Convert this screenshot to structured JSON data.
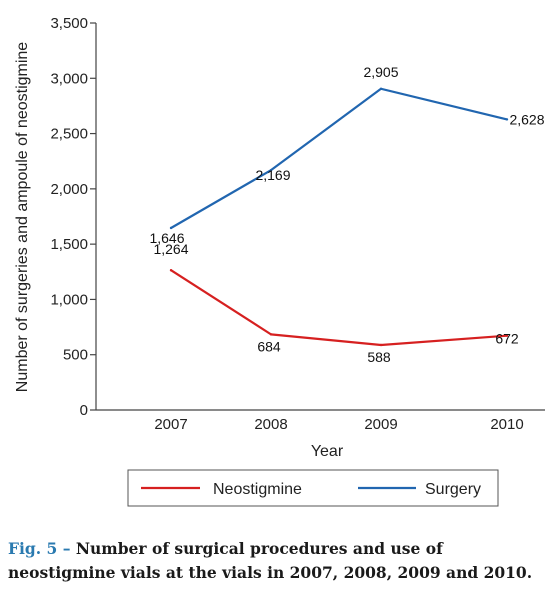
{
  "chart_data": {
    "type": "line",
    "title": "",
    "xlabel": "Year",
    "ylabel": "Number of surgeries and ampoule of neostigmine",
    "categories": [
      "2007",
      "2008",
      "2009",
      "2010"
    ],
    "ylim": [
      0,
      3500
    ],
    "yticks": [
      0,
      500,
      1000,
      1500,
      2000,
      2500,
      3000,
      3500
    ],
    "ytick_labels": [
      "0",
      "500",
      "1,000",
      "1,500",
      "2,000",
      "2,500",
      "3,000",
      "3,500"
    ],
    "grid": false,
    "legend_position": "bottom",
    "series": [
      {
        "name": "Neostigmine",
        "color": "#d62020",
        "values": [
          1264,
          684,
          588,
          672
        ],
        "labels": [
          "1,264",
          "684",
          "588",
          "672"
        ]
      },
      {
        "name": "Surgery",
        "color": "#2166b0",
        "values": [
          1646,
          2169,
          2905,
          2628
        ],
        "labels": [
          "1,646",
          "2,169",
          "2,905",
          "2,628"
        ]
      }
    ]
  },
  "caption": {
    "figure_label": "Fig. 5 –",
    "text": "Number of surgical procedures and use of neostigmine vials at the vials in 2007, 2008, 2009 and 2010."
  }
}
